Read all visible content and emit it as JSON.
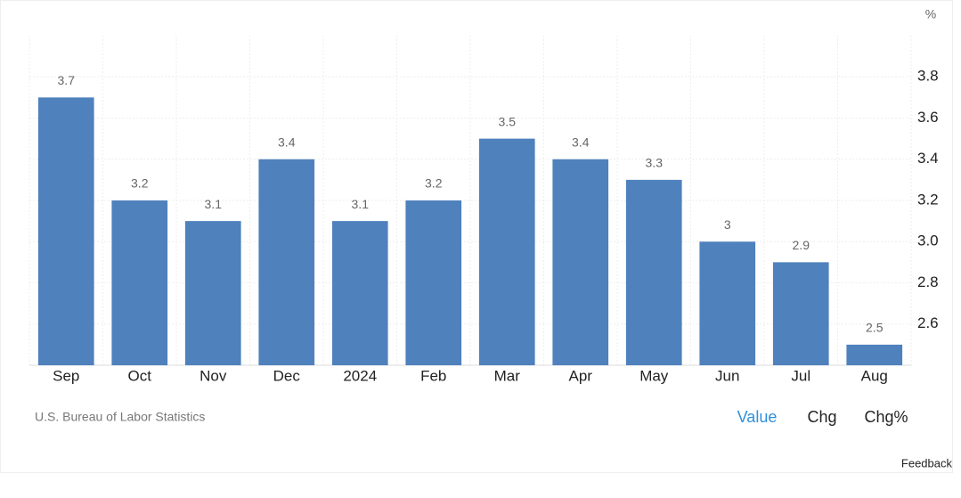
{
  "chart_data": {
    "type": "bar",
    "y_unit": "%",
    "categories": [
      "Sep",
      "Oct",
      "Nov",
      "Dec",
      "2024",
      "Feb",
      "Mar",
      "Apr",
      "May",
      "Jun",
      "Jul",
      "Aug"
    ],
    "values": [
      3.7,
      3.2,
      3.1,
      3.4,
      3.1,
      3.2,
      3.5,
      3.4,
      3.3,
      3,
      2.9,
      2.5
    ],
    "color": "#4f81bd",
    "ylim": [
      2.4,
      4.0
    ],
    "yticks": [
      2.6,
      2.8,
      {
        "value": 3,
        "label": "3.0"
      },
      3.2,
      3.4,
      3.6,
      3.8
    ],
    "grid": true,
    "source": "U.S. Bureau of Labor Statistics"
  },
  "controls": [
    "Value",
    "Chg",
    "Chg%"
  ],
  "feedback": "Feedback"
}
